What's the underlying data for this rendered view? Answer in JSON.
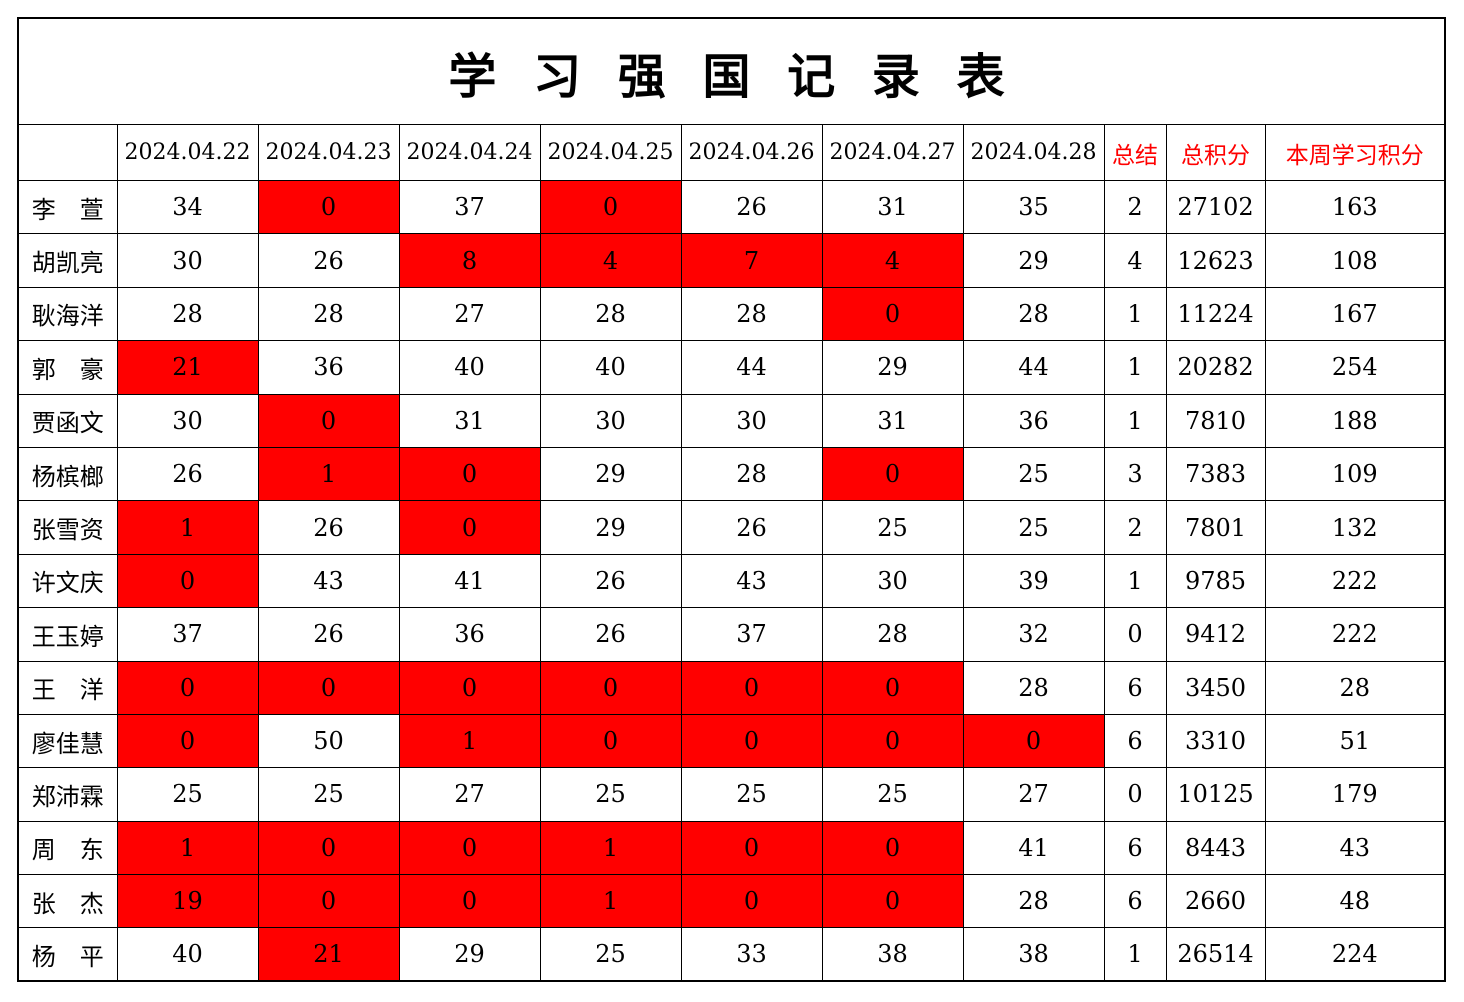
{
  "title": "学 习 强 国 记 录 表",
  "header": {
    "name_col": "",
    "dates": [
      "2024.04.22",
      "2024.04.23",
      "2024.04.24",
      "2024.04.25",
      "2024.04.26",
      "2024.04.27",
      "2024.04.28"
    ],
    "summary": "总结",
    "total": "总积分",
    "week": "本周学习积分"
  },
  "colors": {
    "highlight_bg": "#FF0000",
    "highlight_text": "#FFFF00",
    "accent_text": "#FF0000",
    "grid_line": "#000000",
    "normal_text": "#000000",
    "background": "#FFFFFF"
  },
  "rows": [
    {
      "name": "李　萱",
      "scores": [
        34,
        0,
        37,
        0,
        26,
        31,
        35
      ],
      "highlighted": [
        1,
        3
      ],
      "summary": 2,
      "total": 27102,
      "week": 163
    },
    {
      "name": "胡凯亮",
      "scores": [
        30,
        26,
        8,
        4,
        7,
        4,
        29
      ],
      "highlighted": [
        2,
        3,
        4,
        5
      ],
      "summary": 4,
      "total": 12623,
      "week": 108
    },
    {
      "name": "耿海洋",
      "scores": [
        28,
        28,
        27,
        28,
        28,
        0,
        28
      ],
      "highlighted": [
        5
      ],
      "summary": 1,
      "total": 11224,
      "week": 167
    },
    {
      "name": "郭　豪",
      "scores": [
        21,
        36,
        40,
        40,
        44,
        29,
        44
      ],
      "highlighted": [
        0
      ],
      "summary": 1,
      "total": 20282,
      "week": 254
    },
    {
      "name": "贾函文",
      "scores": [
        30,
        0,
        31,
        30,
        30,
        31,
        36
      ],
      "highlighted": [
        1
      ],
      "summary": 1,
      "total": 7810,
      "week": 188
    },
    {
      "name": "杨槟榔",
      "scores": [
        26,
        1,
        0,
        29,
        28,
        0,
        25
      ],
      "highlighted": [
        1,
        2,
        5
      ],
      "summary": 3,
      "total": 7383,
      "week": 109
    },
    {
      "name": "张雪资",
      "scores": [
        1,
        26,
        0,
        29,
        26,
        25,
        25
      ],
      "highlighted": [
        0,
        2
      ],
      "summary": 2,
      "total": 7801,
      "week": 132
    },
    {
      "name": "许文庆",
      "scores": [
        0,
        43,
        41,
        26,
        43,
        30,
        39
      ],
      "highlighted": [
        0
      ],
      "summary": 1,
      "total": 9785,
      "week": 222
    },
    {
      "name": "王玉婷",
      "scores": [
        37,
        26,
        36,
        26,
        37,
        28,
        32
      ],
      "highlighted": [],
      "summary": 0,
      "total": 9412,
      "week": 222
    },
    {
      "name": "王　洋",
      "scores": [
        0,
        0,
        0,
        0,
        0,
        0,
        28
      ],
      "highlighted": [
        0,
        1,
        2,
        3,
        4,
        5
      ],
      "summary": 6,
      "total": 3450,
      "week": 28
    },
    {
      "name": "廖佳慧",
      "scores": [
        0,
        50,
        1,
        0,
        0,
        0,
        0
      ],
      "highlighted": [
        0,
        2,
        3,
        4,
        5,
        6
      ],
      "summary": 6,
      "total": 3310,
      "week": 51
    },
    {
      "name": "郑沛霖",
      "scores": [
        25,
        25,
        27,
        25,
        25,
        25,
        27
      ],
      "highlighted": [],
      "summary": 0,
      "total": 10125,
      "week": 179
    },
    {
      "name": "周　东",
      "scores": [
        1,
        0,
        0,
        1,
        0,
        0,
        41
      ],
      "highlighted": [
        0,
        1,
        2,
        3,
        4,
        5
      ],
      "summary": 6,
      "total": 8443,
      "week": 43
    },
    {
      "name": "张　杰",
      "scores": [
        19,
        0,
        0,
        1,
        0,
        0,
        28
      ],
      "highlighted": [
        0,
        1,
        2,
        3,
        4,
        5
      ],
      "summary": 6,
      "total": 2660,
      "week": 48
    },
    {
      "name": "杨　平",
      "scores": [
        40,
        21,
        29,
        25,
        33,
        38,
        38
      ],
      "highlighted": [
        1
      ],
      "summary": 1,
      "total": 26514,
      "week": 224
    }
  ]
}
